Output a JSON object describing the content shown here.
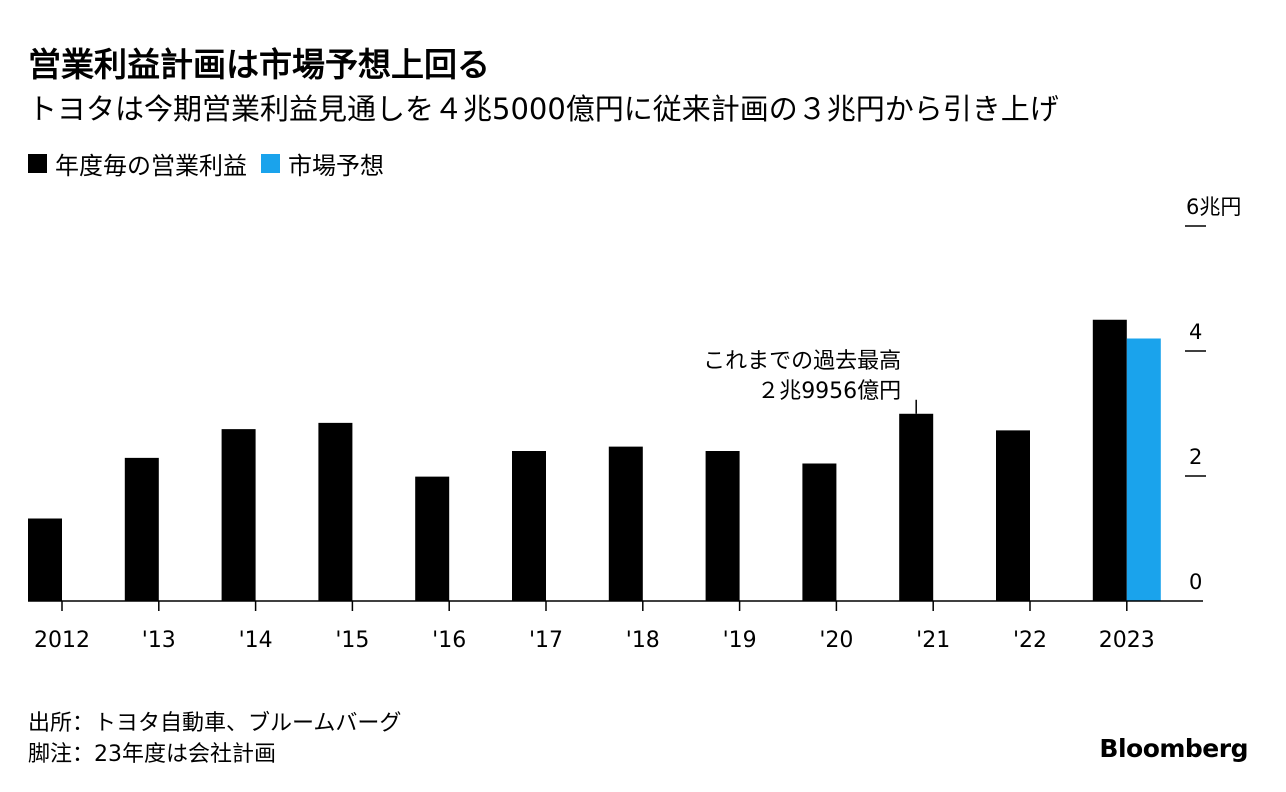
{
  "title": "営業利益計画は市場予想上回る",
  "subtitle": "トヨタは今期営業利益見通しを４兆5000億円に従来計画の３兆円から引き上げ",
  "legend": [
    {
      "label": "年度毎の営業利益",
      "color": "#000000"
    },
    {
      "label": "市場予想",
      "color": "#1aa3ec"
    }
  ],
  "source_lines": [
    "出所：トヨタ自動車、ブルームバーグ",
    "脚注：23年度は会社計画"
  ],
  "logo": "Bloomberg",
  "chart_data": {
    "type": "bar",
    "title": "営業利益計画は市場予想上回る",
    "categories": [
      "2012",
      "'13",
      "'14",
      "'15",
      "'16",
      "'17",
      "'18",
      "'19",
      "'20",
      "'21",
      "'22",
      "2023"
    ],
    "series": [
      {
        "name": "年度毎の営業利益",
        "color": "#000000",
        "values": [
          1.32,
          2.29,
          2.75,
          2.85,
          1.99,
          2.4,
          2.47,
          2.4,
          2.2,
          2.9956,
          2.73,
          4.5
        ]
      },
      {
        "name": "市場予想",
        "color": "#1aa3ec",
        "values": [
          null,
          null,
          null,
          null,
          null,
          null,
          null,
          null,
          null,
          null,
          null,
          4.2
        ]
      }
    ],
    "yaxis": {
      "unit_label": "6兆円",
      "ticks": [
        0,
        2,
        4,
        6
      ],
      "tick_labels": [
        "0",
        "2",
        "4",
        "6兆円"
      ],
      "ylim": [
        0,
        6
      ],
      "position": "right"
    },
    "annotation": {
      "category": "'21",
      "lines": [
        "これまでの過去最高",
        "２兆9956億円"
      ]
    }
  }
}
